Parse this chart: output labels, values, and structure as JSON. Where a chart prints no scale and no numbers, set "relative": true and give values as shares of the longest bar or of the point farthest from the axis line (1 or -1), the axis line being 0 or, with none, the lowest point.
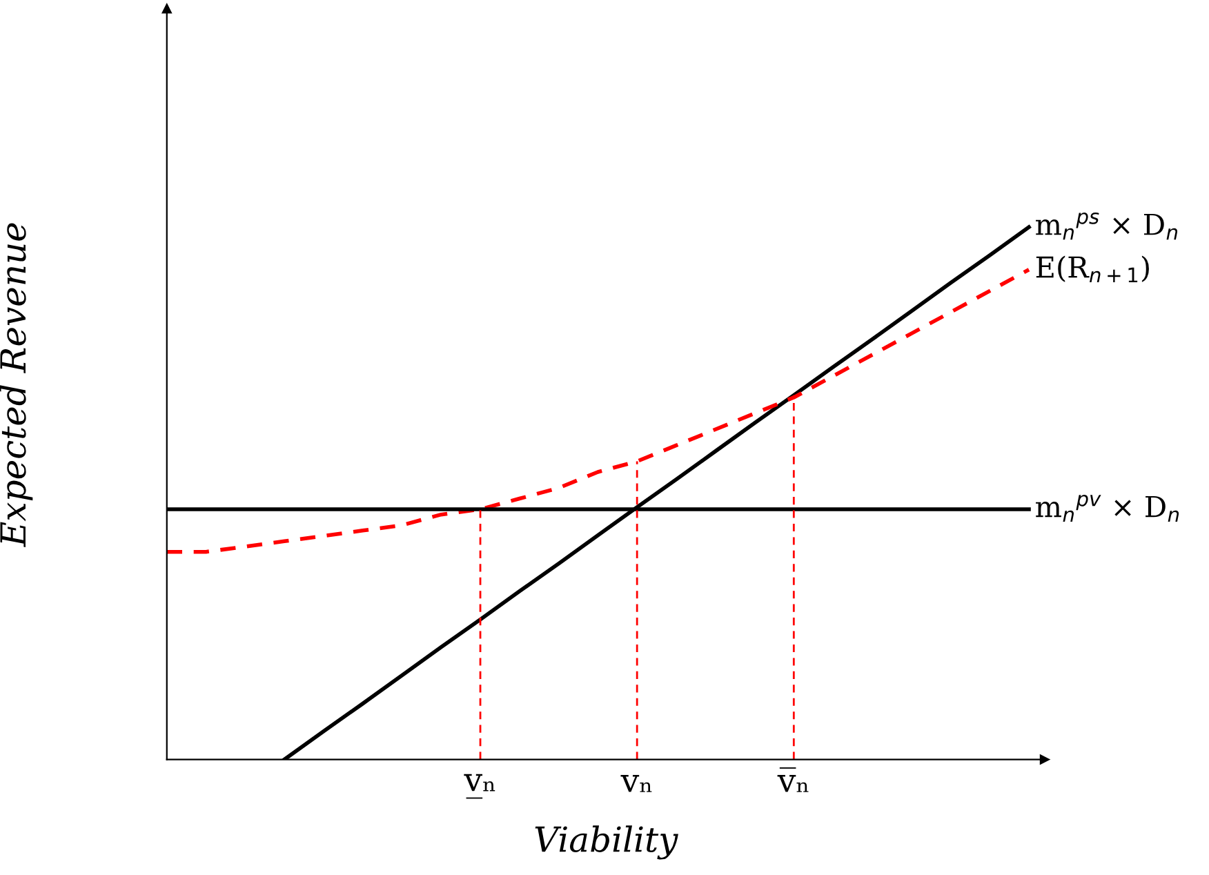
{
  "chart_data": {
    "type": "line",
    "relative": true,
    "xlabel": "Viability",
    "ylabel": "Expected Revenue",
    "categories": [
      null,
      null,
      null,
      null,
      null,
      null,
      null,
      null,
      "v̲ₙ",
      null,
      null,
      null,
      "vₙ",
      null,
      null,
      null,
      "v̅ₙ",
      null,
      null,
      null,
      null,
      null,
      null
    ],
    "series": [
      {
        "name": "m$_{n}$$^{ps}$ × D$_{n}$",
        "color": "#000000",
        "line_style": "solid",
        "values": [
          null,
          null,
          null,
          0,
          0.053,
          0.105,
          0.158,
          0.211,
          0.263,
          0.316,
          0.368,
          0.421,
          0.474,
          0.526,
          0.579,
          0.632,
          0.684,
          0.737,
          0.789,
          0.842,
          0.895,
          0.947,
          1
        ]
      },
      {
        "name": "E(R$_{n+1}$)",
        "color": "#ff0000",
        "line_style": "dashed",
        "values": [
          0.39,
          0.39,
          0.4,
          0.41,
          0.42,
          0.43,
          0.44,
          0.46,
          0.47,
          0.49,
          0.51,
          0.54,
          0.56,
          0.59,
          0.62,
          0.65,
          0.68,
          0.72,
          0.76,
          0.8,
          0.84,
          0.88,
          0.92
        ]
      },
      {
        "name": "m$_{n}$$^{pv}$ × D$_{n}$",
        "color": "#000000",
        "line_style": "solid",
        "values": [
          0.47,
          0.47,
          0.47,
          0.47,
          0.47,
          0.47,
          0.47,
          0.47,
          0.47,
          0.47,
          0.47,
          0.47,
          0.47,
          0.47,
          0.47,
          0.47,
          0.47,
          0.47,
          0.47,
          0.47,
          0.47,
          0.47,
          0.47
        ]
      }
    ],
    "ref_lines": [
      {
        "axis": "x",
        "value": "v̲ₙ",
        "color": "#ff0000",
        "line_style": "dashed"
      },
      {
        "axis": "x",
        "value": "vₙ",
        "color": "#ff0000",
        "line_style": "dashed"
      },
      {
        "axis": "x",
        "value": "v̅ₙ",
        "color": "#ff0000",
        "line_style": "dashed"
      }
    ],
    "grid": false,
    "legend": false
  }
}
